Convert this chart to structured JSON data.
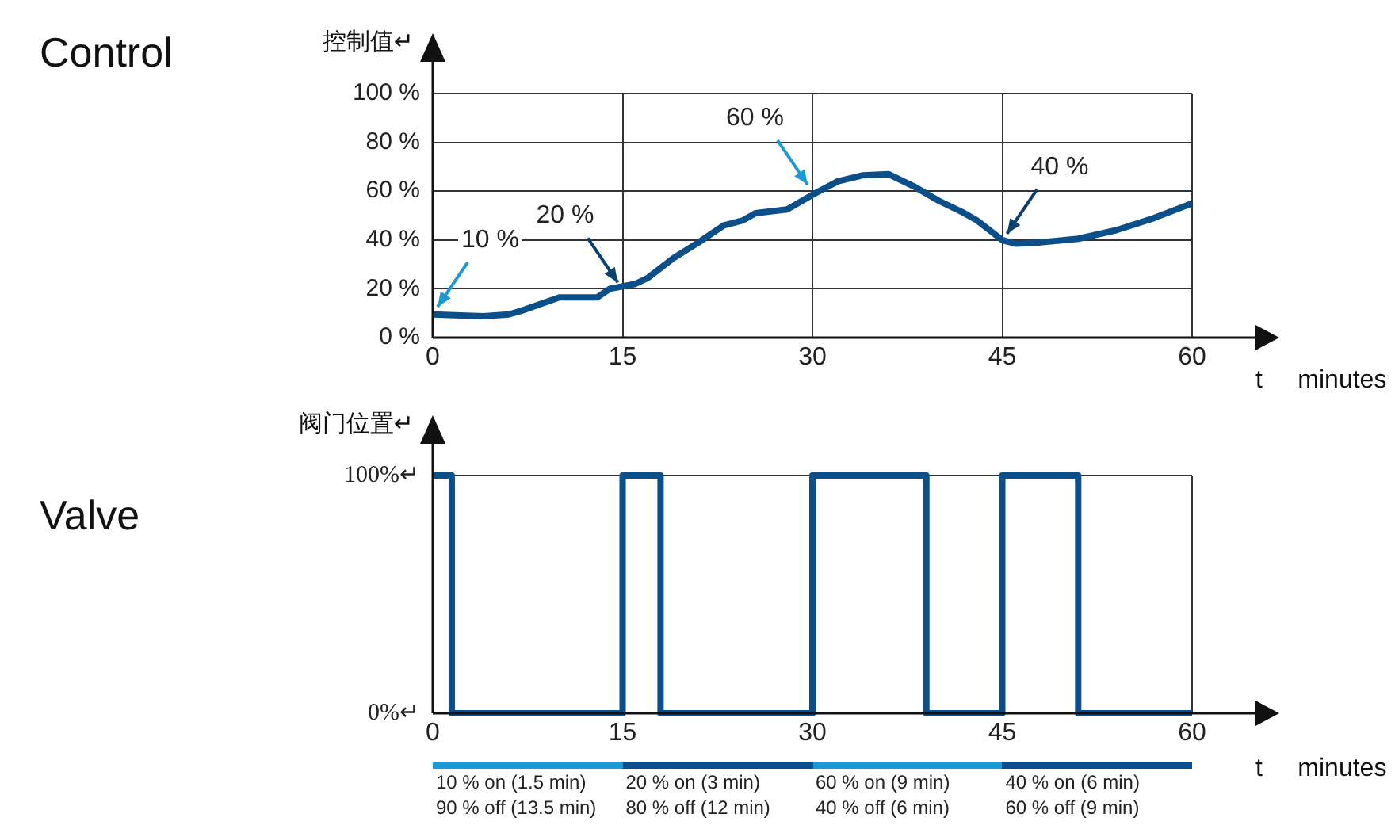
{
  "chart_data": [
    {
      "type": "line",
      "title": "Control",
      "ylabel": "控制值↵",
      "xlabel": "t     minutes",
      "x": [
        0,
        4,
        6,
        7,
        10,
        13,
        14,
        16,
        17,
        19,
        21,
        23,
        24.5,
        25.5,
        28,
        30,
        32,
        34,
        36,
        38,
        40,
        42,
        43,
        45,
        46,
        48,
        51,
        54,
        57,
        60
      ],
      "values": [
        9.5,
        8.8,
        9.5,
        11,
        16.5,
        16.5,
        20,
        22,
        24.5,
        32.5,
        39,
        46,
        48,
        51,
        52.5,
        58.5,
        64,
        66.5,
        67,
        62,
        56,
        51,
        48,
        40,
        38.5,
        39,
        40.5,
        44,
        49,
        55
      ],
      "color": "#0b4f8a",
      "xlim": [
        0,
        60
      ],
      "xticks": [
        0,
        15,
        30,
        45,
        60
      ],
      "ylim": [
        0,
        100
      ],
      "yticks": [
        {
          "value": 0,
          "label": "0 %"
        },
        {
          "value": 20,
          "label": "20 %"
        },
        {
          "value": 40,
          "label": "40 %"
        },
        {
          "value": 60,
          "label": "60 %"
        },
        {
          "value": 80,
          "label": "80 %"
        },
        {
          "value": 100,
          "label": "100 %"
        }
      ],
      "grid": true,
      "marker": "none",
      "annotations": [
        {
          "text": "10 %",
          "x": 0,
          "y": 10
        },
        {
          "text": "20 %",
          "x": 15,
          "y": 20
        },
        {
          "text": "60 %",
          "x": 30,
          "y": 60
        },
        {
          "text": "40 %",
          "x": 45,
          "y": 40
        }
      ]
    },
    {
      "type": "step",
      "title": "Valve",
      "ylabel": "阀门位置↵",
      "xlabel": "t     minutes",
      "x": [
        0,
        1.5,
        15,
        18,
        30,
        39,
        45,
        51,
        60
      ],
      "values": [
        100,
        0,
        100,
        0,
        100,
        0,
        100,
        0,
        0
      ],
      "color": "#0b4f8a",
      "xlim": [
        0,
        60
      ],
      "xticks": [
        0,
        15,
        30,
        45,
        60
      ],
      "ylim": [
        0,
        100
      ],
      "yticks": [
        {
          "value": 0,
          "label": "0%↵"
        },
        {
          "value": 100,
          "label": "100%↵"
        }
      ],
      "grid": true,
      "marker": "none",
      "annotations": [
        "10 % on (1.5 min)\n90 % off (13.5 min)",
        "20 % on (3 min)\n80 % off (12 min)",
        "60 % on (9 min)\n40 % off (6 min)",
        "40 % on (6 min)\n60 % off (9 min)"
      ]
    }
  ]
}
